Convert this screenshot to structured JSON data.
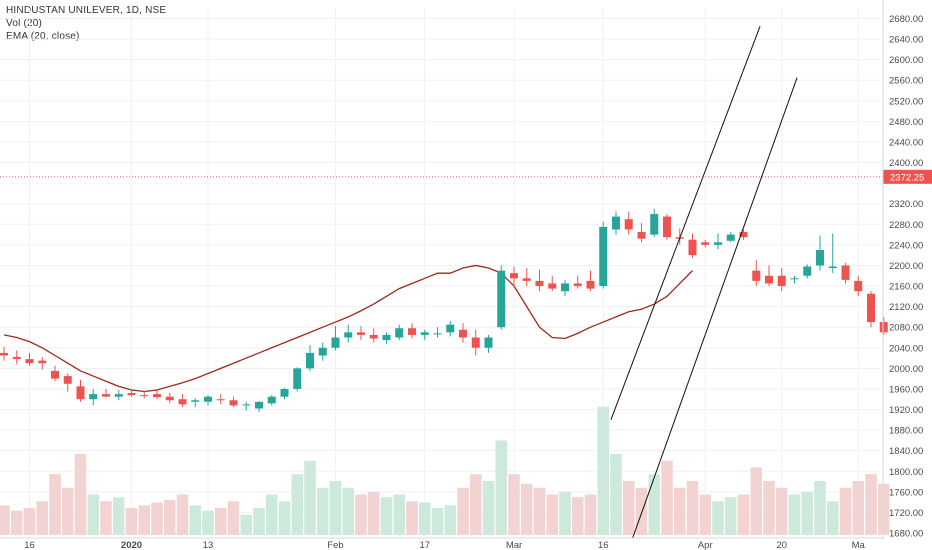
{
  "legend": {
    "title": "HINDUSTAN UNILEVER, 1D, NSE",
    "vol": "Vol (20)",
    "ema": "EMA (20, close)"
  },
  "colors": {
    "up": "#26a69a",
    "down": "#ef5350",
    "up_volume": "#cde9dc",
    "down_volume": "#f3d2d2",
    "ema": "#a3261c",
    "channel": "#111111",
    "price_line": "#ef5350",
    "grid": "#eef1f6"
  },
  "chart_data": {
    "type": "candlestick",
    "ylim": [
      1670,
      2700
    ],
    "yticks": [
      1680,
      1720,
      1760,
      1800,
      1840,
      1880,
      1920,
      1960,
      2000,
      2040,
      2080,
      2120,
      2160,
      2200,
      2240,
      2280,
      2320,
      2360,
      2400,
      2440,
      2480,
      2520,
      2560,
      2600,
      2640,
      2680
    ],
    "xticks": [
      {
        "label": "16",
        "bar": 2,
        "bold": false
      },
      {
        "label": "2020",
        "bar": 10,
        "bold": true
      },
      {
        "label": "13",
        "bar": 16,
        "bold": false
      },
      {
        "label": "Feb",
        "bar": 26,
        "bold": false
      },
      {
        "label": "17",
        "bar": 33,
        "bold": false
      },
      {
        "label": "Mar",
        "bar": 40,
        "bold": false
      },
      {
        "label": "16",
        "bar": 47,
        "bold": false
      },
      {
        "label": "Apr",
        "bar": 55,
        "bold": false
      },
      {
        "label": "20",
        "bar": 61,
        "bold": false
      },
      {
        "label": "Ma",
        "bar": 67,
        "bold": false
      }
    ],
    "last_price": "2372.25",
    "last_price_value": 2372.25,
    "candles": [
      {
        "o": 2030,
        "h": 2042,
        "l": 2015,
        "c": 2025,
        "v": 0.22,
        "up": false
      },
      {
        "o": 2022,
        "h": 2035,
        "l": 2008,
        "c": 2018,
        "v": 0.18,
        "up": false
      },
      {
        "o": 2018,
        "h": 2030,
        "l": 2005,
        "c": 2010,
        "v": 0.2,
        "up": false
      },
      {
        "o": 2015,
        "h": 2022,
        "l": 1998,
        "c": 2010,
        "v": 0.25,
        "up": false
      },
      {
        "o": 1995,
        "h": 2005,
        "l": 1975,
        "c": 1980,
        "v": 0.45,
        "up": false
      },
      {
        "o": 1985,
        "h": 1990,
        "l": 1955,
        "c": 1970,
        "v": 0.35,
        "up": false
      },
      {
        "o": 1965,
        "h": 1978,
        "l": 1935,
        "c": 1940,
        "v": 0.6,
        "up": false
      },
      {
        "o": 1940,
        "h": 1960,
        "l": 1928,
        "c": 1950,
        "v": 0.3,
        "up": true
      },
      {
        "o": 1950,
        "h": 1960,
        "l": 1944,
        "c": 1945,
        "v": 0.25,
        "up": false
      },
      {
        "o": 1945,
        "h": 1958,
        "l": 1938,
        "c": 1950,
        "v": 0.28,
        "up": true
      },
      {
        "o": 1952,
        "h": 1958,
        "l": 1945,
        "c": 1948,
        "v": 0.2,
        "up": false
      },
      {
        "o": 1948,
        "h": 1956,
        "l": 1942,
        "c": 1946,
        "v": 0.22,
        "up": false
      },
      {
        "o": 1950,
        "h": 1957,
        "l": 1940,
        "c": 1944,
        "v": 0.24,
        "up": false
      },
      {
        "o": 1945,
        "h": 1952,
        "l": 1932,
        "c": 1938,
        "v": 0.26,
        "up": false
      },
      {
        "o": 1940,
        "h": 1950,
        "l": 1925,
        "c": 1930,
        "v": 0.3,
        "up": false
      },
      {
        "o": 1935,
        "h": 1942,
        "l": 1925,
        "c": 1938,
        "v": 0.22,
        "up": true
      },
      {
        "o": 1935,
        "h": 1948,
        "l": 1928,
        "c": 1945,
        "v": 0.18,
        "up": true
      },
      {
        "o": 1940,
        "h": 1950,
        "l": 1930,
        "c": 1938,
        "v": 0.2,
        "up": false
      },
      {
        "o": 1938,
        "h": 1945,
        "l": 1925,
        "c": 1928,
        "v": 0.25,
        "up": false
      },
      {
        "o": 1928,
        "h": 1935,
        "l": 1918,
        "c": 1930,
        "v": 0.15,
        "up": true
      },
      {
        "o": 1922,
        "h": 1936,
        "l": 1915,
        "c": 1935,
        "v": 0.2,
        "up": true
      },
      {
        "o": 1932,
        "h": 1948,
        "l": 1928,
        "c": 1945,
        "v": 0.3,
        "up": true
      },
      {
        "o": 1945,
        "h": 1962,
        "l": 1940,
        "c": 1960,
        "v": 0.25,
        "up": true
      },
      {
        "o": 1960,
        "h": 2002,
        "l": 1955,
        "c": 2000,
        "v": 0.45,
        "up": true
      },
      {
        "o": 2000,
        "h": 2045,
        "l": 1995,
        "c": 2030,
        "v": 0.55,
        "up": true
      },
      {
        "o": 2025,
        "h": 2050,
        "l": 2015,
        "c": 2040,
        "v": 0.35,
        "up": true
      }
    ],
    "candles_b": [
      {
        "o": 2040,
        "h": 2082,
        "l": 2035,
        "c": 2060,
        "v": 0.4,
        "up": true
      },
      {
        "o": 2060,
        "h": 2085,
        "l": 2050,
        "c": 2070,
        "v": 0.35,
        "up": true
      },
      {
        "o": 2070,
        "h": 2082,
        "l": 2055,
        "c": 2065,
        "v": 0.3,
        "up": false
      },
      {
        "o": 2065,
        "h": 2078,
        "l": 2050,
        "c": 2058,
        "v": 0.32,
        "up": false
      },
      {
        "o": 2055,
        "h": 2070,
        "l": 2048,
        "c": 2065,
        "v": 0.28,
        "up": true
      },
      {
        "o": 2060,
        "h": 2085,
        "l": 2055,
        "c": 2078,
        "v": 0.3,
        "up": true
      },
      {
        "o": 2078,
        "h": 2088,
        "l": 2058,
        "c": 2065,
        "v": 0.25,
        "up": false
      },
      {
        "o": 2065,
        "h": 2075,
        "l": 2055,
        "c": 2070,
        "v": 0.24,
        "up": true
      },
      {
        "o": 2068,
        "h": 2080,
        "l": 2060,
        "c": 2068,
        "v": 0.2,
        "up": true
      },
      {
        "o": 2070,
        "h": 2092,
        "l": 2062,
        "c": 2085,
        "v": 0.22,
        "up": true
      },
      {
        "o": 2075,
        "h": 2088,
        "l": 2050,
        "c": 2060,
        "v": 0.35,
        "up": false
      },
      {
        "o": 2060,
        "h": 2075,
        "l": 2025,
        "c": 2040,
        "v": 0.45,
        "up": false
      }
    ],
    "candles_c": [
      {
        "o": 2040,
        "h": 2065,
        "l": 2030,
        "c": 2060,
        "v": 0.4,
        "up": true
      },
      {
        "o": 2080,
        "h": 2200,
        "l": 2075,
        "c": 2190,
        "v": 0.7,
        "up": true
      },
      {
        "o": 2185,
        "h": 2198,
        "l": 2160,
        "c": 2175,
        "v": 0.45,
        "up": false
      },
      {
        "o": 2175,
        "h": 2195,
        "l": 2160,
        "c": 2170,
        "v": 0.38,
        "up": false
      },
      {
        "o": 2170,
        "h": 2192,
        "l": 2150,
        "c": 2160,
        "v": 0.35,
        "up": false
      },
      {
        "o": 2165,
        "h": 2180,
        "l": 2150,
        "c": 2155,
        "v": 0.3,
        "up": false
      },
      {
        "o": 2150,
        "h": 2172,
        "l": 2140,
        "c": 2165,
        "v": 0.32,
        "up": true
      },
      {
        "o": 2165,
        "h": 2180,
        "l": 2155,
        "c": 2160,
        "v": 0.28,
        "up": false
      },
      {
        "o": 2155,
        "h": 2190,
        "l": 2150,
        "c": 2170,
        "v": 0.3,
        "up": false
      },
      {
        "o": 2160,
        "h": 2285,
        "l": 2155,
        "c": 2275,
        "v": 0.95,
        "up": true
      },
      {
        "o": 2270,
        "h": 2305,
        "l": 2260,
        "c": 2295,
        "v": 0.6,
        "up": true
      },
      {
        "o": 2290,
        "h": 2305,
        "l": 2260,
        "c": 2270,
        "v": 0.4,
        "up": false
      },
      {
        "o": 2265,
        "h": 2282,
        "l": 2245,
        "c": 2252,
        "v": 0.35,
        "up": false
      },
      {
        "o": 2260,
        "h": 2310,
        "l": 2255,
        "c": 2300,
        "v": 0.45,
        "up": true
      }
    ],
    "candles_d": [
      {
        "o": 2295,
        "h": 2300,
        "l": 2250,
        "c": 2255,
        "v": 0.55,
        "up": false
      },
      {
        "o": 2252,
        "h": 2272,
        "l": 2240,
        "c": 2255,
        "v": 0.35,
        "up": false
      },
      {
        "o": 2250,
        "h": 2262,
        "l": 2215,
        "c": 2220,
        "v": 0.4,
        "up": false
      },
      {
        "o": 2245,
        "h": 2250,
        "l": 2235,
        "c": 2240,
        "v": 0.3,
        "up": false
      },
      {
        "o": 2240,
        "h": 2262,
        "l": 2232,
        "c": 2245,
        "v": 0.25,
        "up": true
      },
      {
        "o": 2248,
        "h": 2265,
        "l": 2245,
        "c": 2260,
        "v": 0.28,
        "up": true
      },
      {
        "o": 2265,
        "h": 2270,
        "l": 2250,
        "c": 2255,
        "v": 0.3,
        "up": false
      },
      {
        "o": 2190,
        "h": 2210,
        "l": 2160,
        "c": 2170,
        "v": 0.5,
        "up": false
      },
      {
        "o": 2180,
        "h": 2200,
        "l": 2160,
        "c": 2165,
        "v": 0.4,
        "up": false
      },
      {
        "o": 2180,
        "h": 2195,
        "l": 2150,
        "c": 2160,
        "v": 0.35,
        "up": false
      },
      {
        "o": 2175,
        "h": 2180,
        "l": 2165,
        "c": 2175,
        "v": 0.3,
        "up": true
      },
      {
        "o": 2180,
        "h": 2202,
        "l": 2175,
        "c": 2198,
        "v": 0.32,
        "up": true
      },
      {
        "o": 2200,
        "h": 2258,
        "l": 2190,
        "c": 2230,
        "v": 0.4,
        "up": true
      },
      {
        "o": 2195,
        "h": 2262,
        "l": 2185,
        "c": 2198,
        "v": 0.25,
        "up": true
      },
      {
        "o": 2200,
        "h": 2205,
        "l": 2165,
        "c": 2172,
        "v": 0.35,
        "up": false
      },
      {
        "o": 2170,
        "h": 2180,
        "l": 2140,
        "c": 2150,
        "v": 0.4,
        "up": false
      },
      {
        "o": 2145,
        "h": 2150,
        "l": 2080,
        "c": 2090,
        "v": 0.45,
        "up": false
      },
      {
        "o": 2090,
        "h": 2100,
        "l": 2065,
        "c": 2070,
        "v": 0.38,
        "up": false
      }
    ],
    "ema": [
      2065,
      2060,
      2052,
      2040,
      2025,
      2010,
      1995,
      1985,
      1975,
      1965,
      1958,
      1955,
      1958,
      1965,
      1972,
      1980,
      1990,
      2000,
      2010,
      2020,
      2030,
      2040,
      2050,
      2060,
      2070,
      2080,
      2090,
      2100,
      2112,
      2125,
      2140,
      2155,
      2165,
      2175,
      2185,
      2185,
      2195,
      2200,
      2195,
      2185,
      2160,
      2120,
      2080,
      2060,
      2058,
      2068,
      2080,
      2090,
      2100,
      2110,
      2115,
      2125,
      2140,
      2165,
      2190
    ],
    "ema_start_bar": 0,
    "channel_lines": [
      {
        "x1": 47.6,
        "y1": 1900,
        "x2": 59.3,
        "y2": 2665
      },
      {
        "x1": 49.3,
        "y1": 1670,
        "x2": 62.2,
        "y2": 2565
      }
    ]
  }
}
